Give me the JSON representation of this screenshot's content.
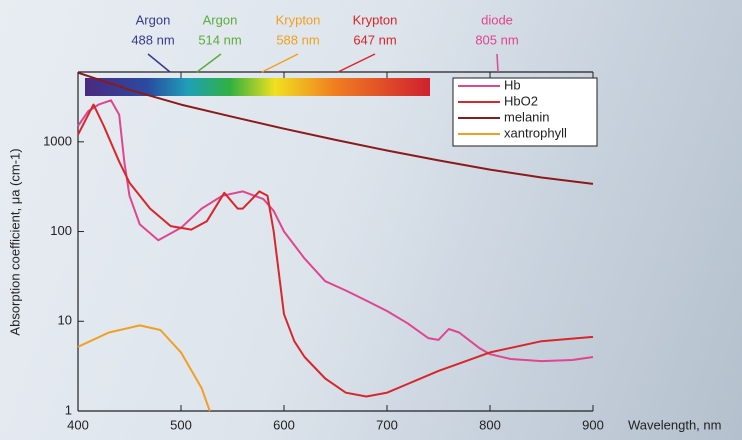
{
  "chart_data": {
    "type": "line",
    "y_label": "Absorption coefficient, μa (cm-1)",
    "x_label": "Wavelength, nm",
    "log_y": true,
    "legend": "top-right",
    "xlim": [
      400,
      900
    ],
    "xticks": [
      400,
      500,
      600,
      700,
      800,
      900
    ],
    "ylim": [
      1,
      6000
    ],
    "yticks": [
      1,
      10,
      100,
      1000
    ],
    "lasers": [
      {
        "name": "Argon",
        "wavelength": "488 nm",
        "color": "#3a3a8c"
      },
      {
        "name": "Argon",
        "wavelength": "514 nm",
        "color": "#5aad3c"
      },
      {
        "name": "Krypton",
        "wavelength": "588 nm",
        "color": "#f0a020"
      },
      {
        "name": "Krypton",
        "wavelength": "647 nm",
        "color": "#d8262a"
      },
      {
        "name": "diode",
        "wavelength": "805 nm",
        "color": "#e0458f"
      }
    ],
    "series": [
      {
        "name": "Hb",
        "color": "#e0458f",
        "x": [
          400,
          410,
          420,
          432,
          440,
          445,
          450,
          460,
          478,
          500,
          520,
          540,
          560,
          580,
          590,
          600,
          620,
          640,
          660,
          680,
          700,
          720,
          740,
          750,
          760,
          770,
          790,
          800,
          820,
          850,
          880,
          900
        ],
        "values": [
          1500,
          2200,
          2600,
          2900,
          2000,
          600,
          250,
          120,
          80,
          110,
          180,
          250,
          280,
          230,
          170,
          100,
          50,
          28,
          22,
          17,
          13,
          9.5,
          6.5,
          6.2,
          8.2,
          7.5,
          5,
          4.3,
          3.8,
          3.6,
          3.7,
          4
        ]
      },
      {
        "name": "HbO2",
        "color": "#d8262a",
        "x": [
          400,
          415,
          425,
          440,
          450,
          470,
          490,
          510,
          525,
          542,
          555,
          560,
          576,
          584,
          590,
          600,
          610,
          620,
          640,
          660,
          680,
          700,
          720,
          750,
          800,
          850,
          900
        ],
        "values": [
          1200,
          2600,
          1500,
          600,
          350,
          180,
          115,
          105,
          130,
          270,
          180,
          180,
          280,
          250,
          100,
          12,
          6,
          4,
          2.3,
          1.6,
          1.45,
          1.6,
          2,
          2.8,
          4.5,
          6,
          6.7
        ]
      },
      {
        "name": "melanin",
        "color": "#8b1a1a",
        "x": [
          400,
          450,
          500,
          550,
          600,
          650,
          700,
          750,
          800,
          850,
          900
        ],
        "values": [
          5900,
          3800,
          2600,
          1900,
          1400,
          1050,
          800,
          620,
          490,
          400,
          340
        ]
      },
      {
        "name": "xantrophyll",
        "color": "#f0a020",
        "x": [
          400,
          430,
          460,
          480,
          500,
          520,
          528
        ],
        "values": [
          5.2,
          7.5,
          9,
          8,
          4.5,
          1.8,
          1
        ]
      }
    ]
  }
}
